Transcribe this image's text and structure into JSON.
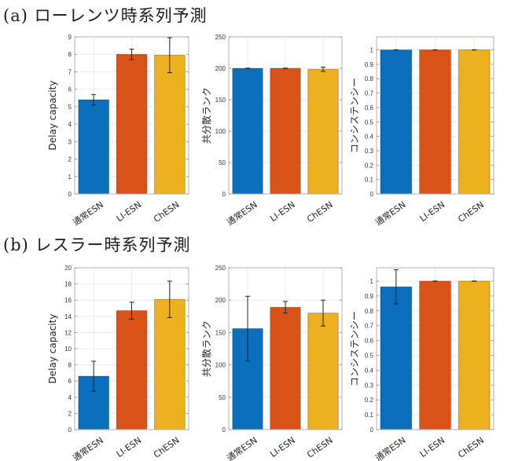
{
  "sections": [
    {
      "label": "(a) ローレンツ時系列予測"
    },
    {
      "label": "(b) レスラー時系列予測"
    }
  ],
  "colors": {
    "series": [
      "#0b6fbd",
      "#d95319",
      "#edb120"
    ],
    "axis": "#b0b0b0",
    "grid": "#ebebeb",
    "errorbar": "#222222"
  },
  "chart_data": [
    {
      "type": "bar",
      "section": "a",
      "categories": [
        "通常ESN",
        "LI-ESN",
        "ChESN"
      ],
      "values": [
        5.4,
        8.0,
        7.95
      ],
      "errors": [
        0.3,
        0.3,
        1.0
      ],
      "ylabel": "Delay capacity",
      "ylim": [
        0,
        9
      ],
      "yticks": [
        0,
        1,
        2,
        3,
        4,
        5,
        6,
        7,
        8,
        9
      ],
      "ytick_labels": [
        "0",
        "1",
        "2",
        "3",
        "4",
        "5",
        "6",
        "7",
        "8",
        "9"
      ],
      "grid": true
    },
    {
      "type": "bar",
      "section": "a",
      "categories": [
        "通常ESN",
        "LI-ESN",
        "ChESN"
      ],
      "values": [
        200,
        200,
        198.5
      ],
      "errors": [
        0.3,
        0.3,
        3.5
      ],
      "ylabel": "共分散ランク",
      "ylim": [
        0,
        250
      ],
      "yticks": [
        0,
        50,
        100,
        150,
        200,
        250
      ],
      "ytick_labels": [
        "0",
        "50",
        "100",
        "150",
        "200",
        "250"
      ],
      "grid": true
    },
    {
      "type": "bar",
      "section": "a",
      "categories": [
        "通常ESN",
        "LI-ESN",
        "ChESN"
      ],
      "values": [
        1.0,
        1.0,
        1.0
      ],
      "errors": [
        0.001,
        0.001,
        0.001
      ],
      "ylabel": "コンシステンシー",
      "ylim": [
        0,
        1.09
      ],
      "yticks": [
        0,
        0.1,
        0.2,
        0.3,
        0.4,
        0.5,
        0.6,
        0.7,
        0.8,
        0.9,
        1
      ],
      "ytick_labels": [
        "0",
        "0.1",
        "0.2",
        "0.3",
        "0.4",
        "0.5",
        "0.6",
        "0.7",
        "0.8",
        "0.9",
        "1"
      ],
      "grid": true
    },
    {
      "type": "bar",
      "section": "b",
      "categories": [
        "通常ESN",
        "LI-ESN",
        "ChESN"
      ],
      "values": [
        6.6,
        14.7,
        16.1
      ],
      "errors": [
        1.85,
        1.05,
        2.25
      ],
      "ylabel": "Delay capacity",
      "ylim": [
        0,
        20
      ],
      "yticks": [
        0,
        2,
        4,
        6,
        8,
        10,
        12,
        14,
        16,
        18,
        20
      ],
      "ytick_labels": [
        "0",
        "2",
        "4",
        "6",
        "8",
        "10",
        "12",
        "14",
        "16",
        "18",
        "20"
      ],
      "grid": true
    },
    {
      "type": "bar",
      "section": "b",
      "categories": [
        "通常ESN",
        "LI-ESN",
        "ChESN"
      ],
      "values": [
        156,
        189,
        180
      ],
      "errors": [
        50,
        9,
        20
      ],
      "ylabel": "共分散ランク",
      "ylim": [
        0,
        250
      ],
      "yticks": [
        0,
        50,
        100,
        150,
        200,
        250
      ],
      "ytick_labels": [
        "0",
        "50",
        "100",
        "150",
        "200",
        "250"
      ],
      "grid": true
    },
    {
      "type": "bar",
      "section": "b",
      "categories": [
        "通常ESN",
        "LI-ESN",
        "ChESN"
      ],
      "values": [
        0.962,
        1.0,
        1.0
      ],
      "errors": [
        0.115,
        0.001,
        0.001
      ],
      "ylabel": "コンシステンシー",
      "ylim": [
        0,
        1.09
      ],
      "yticks": [
        0,
        0.1,
        0.2,
        0.3,
        0.4,
        0.5,
        0.6,
        0.7,
        0.8,
        0.9,
        1
      ],
      "ytick_labels": [
        "0",
        "0.1",
        "0.2",
        "0.3",
        "0.4",
        "0.5",
        "0.6",
        "0.7",
        "0.8",
        "0.9",
        "1"
      ],
      "grid": true
    }
  ]
}
